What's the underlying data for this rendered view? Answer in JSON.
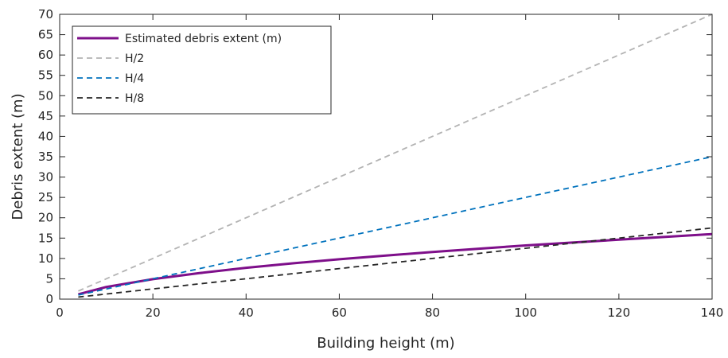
{
  "chart_data": {
    "type": "line",
    "xlabel": "Building height (m)",
    "ylabel": "Debris extent (m)",
    "xlim": [
      0,
      140
    ],
    "ylim": [
      0,
      70
    ],
    "xticks": [
      0,
      20,
      40,
      60,
      80,
      100,
      120,
      140
    ],
    "yticks": [
      0,
      5,
      10,
      15,
      20,
      25,
      30,
      35,
      40,
      45,
      50,
      55,
      60,
      65,
      70
    ],
    "grid": false,
    "legend_position": "top-left",
    "series": [
      {
        "name": "Estimated debris extent (m)",
        "color": "#7e0f8a",
        "style": "solid",
        "x": [
          4,
          10,
          20,
          30,
          40,
          50,
          60,
          70,
          80,
          90,
          100,
          110,
          120,
          130,
          140
        ],
        "y": [
          1.2,
          3.0,
          4.9,
          6.4,
          7.7,
          8.8,
          9.8,
          10.7,
          11.6,
          12.4,
          13.2,
          13.9,
          14.6,
          15.3,
          16.0
        ]
      },
      {
        "name": "H/2",
        "color": "#b3b3b3",
        "style": "dashed",
        "x": [
          4,
          140
        ],
        "y": [
          2,
          70
        ]
      },
      {
        "name": "H/4",
        "color": "#0072bd",
        "style": "dashed",
        "x": [
          4,
          140
        ],
        "y": [
          1,
          35
        ]
      },
      {
        "name": "H/8",
        "color": "#262626",
        "style": "dashed",
        "x": [
          4,
          140
        ],
        "y": [
          0.5,
          17.5
        ]
      }
    ]
  }
}
